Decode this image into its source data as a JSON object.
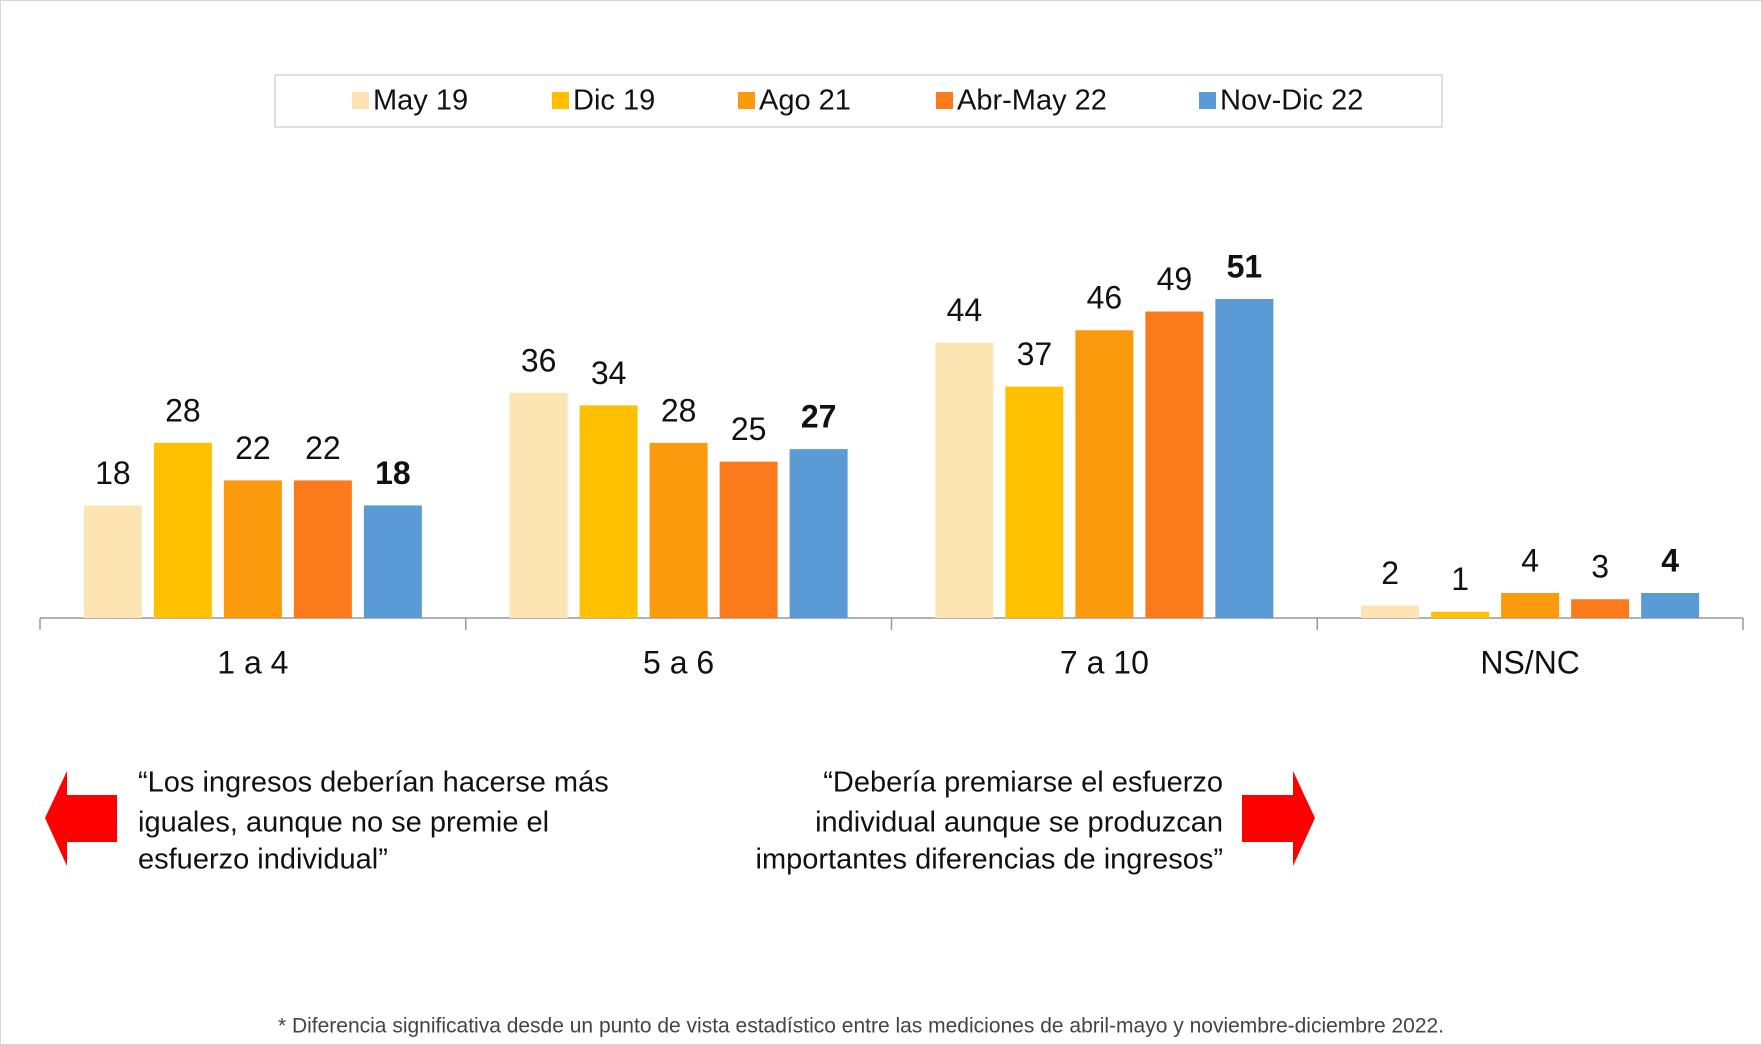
{
  "chart_data": {
    "type": "bar",
    "categories": [
      "1 a 4",
      "5 a 6",
      "7 a 10",
      "NS/NC"
    ],
    "series": [
      {
        "name": "May 19",
        "color": "#fde5b3",
        "values": [
          18,
          36,
          44,
          2
        ]
      },
      {
        "name": "Dic 19",
        "color": "#ffc000",
        "values": [
          28,
          34,
          37,
          1
        ]
      },
      {
        "name": "Ago 21",
        "color": "#fa9a0c",
        "values": [
          22,
          28,
          46,
          4
        ]
      },
      {
        "name": "Abr-May 22",
        "color": "#fa7a1c",
        "values": [
          22,
          25,
          49,
          3
        ]
      },
      {
        "name": "Nov-Dic 22",
        "color": "#5b9bd5",
        "values": [
          18,
          27,
          51,
          4
        ]
      }
    ],
    "annotations": {
      "left": [
        "“Los ingresos deberían hacerse más",
        "iguales, aunque no se premie el",
        "esfuerzo individual”"
      ],
      "right": [
        "“Debería premiarse el esfuerzo",
        "individual aunque se produzcan",
        "importantes diferencias de ingresos”"
      ]
    },
    "footnote": "* Diferencia significativa desde un punto de vista estadístico entre las mediciones de abril-mayo y noviembre-diciembre 2022."
  }
}
